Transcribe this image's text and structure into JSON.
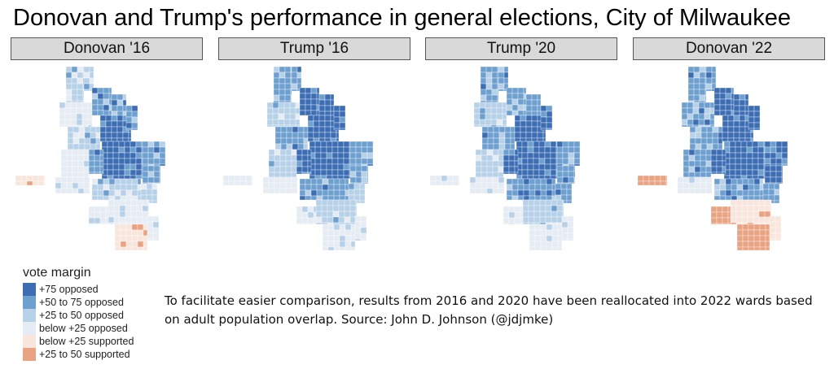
{
  "title": "Donovan and Trump's performance in general elections, City of Milwaukee",
  "panels": [
    {
      "label": "Donovan '16",
      "style": "donovan16"
    },
    {
      "label": "Trump '16",
      "style": "trump16"
    },
    {
      "label": "Trump '20",
      "style": "trump20"
    },
    {
      "label": "Donovan '22",
      "style": "donovan22"
    }
  ],
  "legend": {
    "title": "vote margin",
    "items": [
      {
        "label": "+75 opposed",
        "color": "#3d6eb4"
      },
      {
        "label": "+50 to 75 opposed",
        "color": "#6d9fcf"
      },
      {
        "label": "+25 to 50 opposed",
        "color": "#b7d2e8"
      },
      {
        "label": "below +25 opposed",
        "color": "#e6ecf3"
      },
      {
        "label": "below +25 supported",
        "color": "#f8e5dc"
      },
      {
        "label": "+25 to 50 supported",
        "color": "#e9a282"
      }
    ]
  },
  "note": "To facilitate easier comparison, results from 2016 and 2020 have been reallocated into 2022 wards based on adult population overlap. Source: John D. Johnson (@jdjmke)"
}
